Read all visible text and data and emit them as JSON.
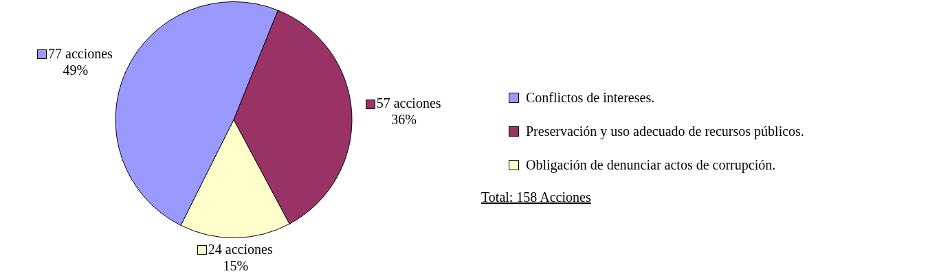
{
  "chart_data": {
    "type": "pie",
    "categories": [
      "Conflictos de intereses.",
      "Preservación y uso adecuado de recursos públicos.",
      "Obligación de denunciar actos de corrupción."
    ],
    "values": [
      77,
      57,
      24
    ],
    "colors": [
      "#9999ff",
      "#993366",
      "#ffffcc"
    ],
    "value_labels": [
      "77 acciones\n49%",
      "57 acciones\n36%",
      "24 acciones\n15%"
    ],
    "legend": "right",
    "annotations": [
      "Total: 158 Acciones"
    ]
  }
}
